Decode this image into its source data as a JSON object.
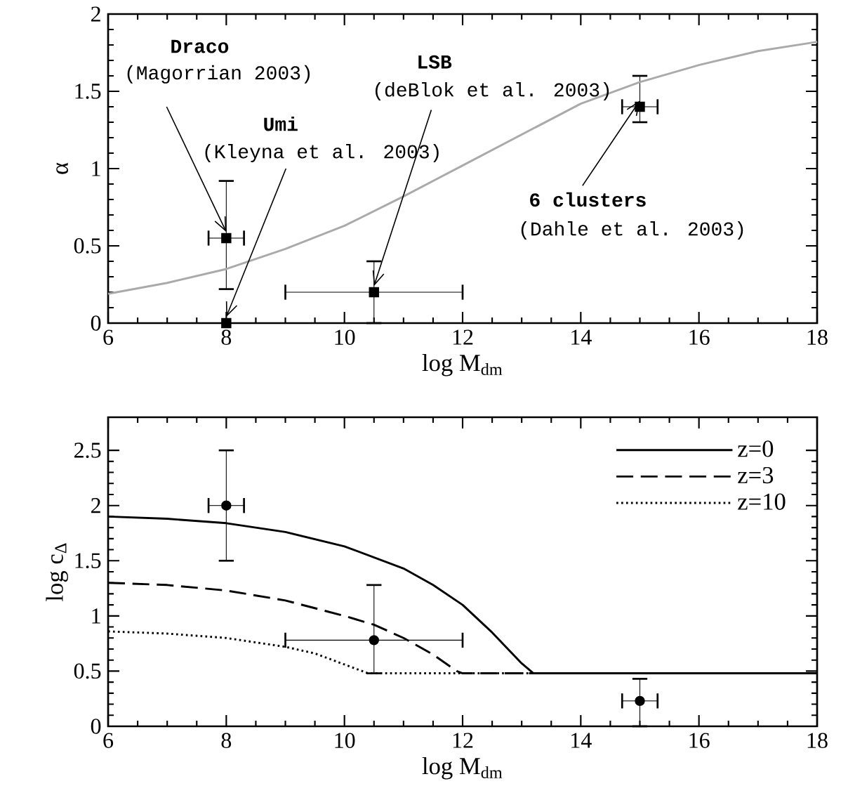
{
  "chart_data": [
    {
      "type": "scatter",
      "xlabel": "log M$_{dm}$",
      "ylabel": "α",
      "xlim": [
        6,
        18
      ],
      "ylim": [
        0,
        2
      ],
      "xticks": [
        6,
        8,
        10,
        12,
        14,
        16,
        18
      ],
      "yticks": [
        0,
        0.5,
        1,
        1.5,
        2
      ],
      "grid": false,
      "legend": false,
      "series": [
        {
          "color": "#000000",
          "marker": "square",
          "x": [
            8,
            8,
            10.5,
            15
          ],
          "values": [
            0.55,
            0,
            0.2,
            1.4
          ],
          "errors": [
            [
              0.22,
              0.92
            ],
            null,
            [
              0,
              0.4
            ],
            [
              1.3,
              1.6
            ]
          ],
          "xerrors": [
            0.3,
            null,
            1.5,
            0.3
          ]
        },
        {
          "type": "line",
          "color": "#aaaaaa",
          "marker": "none",
          "line_style": "solid",
          "x": [
            6,
            7,
            8,
            9,
            10,
            11,
            12,
            13,
            14,
            15,
            16,
            17,
            18
          ],
          "values": [
            0.19,
            0.26,
            0.35,
            0.48,
            0.63,
            0.82,
            1.02,
            1.22,
            1.42,
            1.56,
            1.67,
            1.76,
            1.82
          ]
        }
      ],
      "annotations": [
        "Draco",
        {
          "text": "(Magorrian 2003)",
          "x": 8,
          "y": 0.55
        },
        "Umi",
        {
          "text": "(Kleyna et al. 2003)",
          "x": 8,
          "y": 0
        },
        "LSB",
        {
          "text": "(deBlok et al. 2003)",
          "x": 10.5,
          "y": 0.2
        },
        {
          "text": "6 clusters",
          "x": 15,
          "y": 1.4
        },
        "(Dahle et al. 2003)"
      ]
    },
    {
      "type": "line",
      "xlabel": "log M$_{dm}$",
      "ylabel": "log c$_{Δ}$",
      "xlim": [
        6,
        18
      ],
      "ylim": [
        0,
        2.8
      ],
      "xticks": [
        6,
        8,
        10,
        12,
        14,
        16,
        18
      ],
      "yticks": [
        0,
        0.5,
        1,
        1.5,
        2,
        2.5
      ],
      "grid": false,
      "legend": "top right",
      "series": [
        {
          "type": "scatter",
          "color": "#000000",
          "marker": "circle",
          "x": [
            8,
            10.5,
            15
          ],
          "values": [
            2,
            0.78,
            0.23
          ],
          "errors": [
            [
              1.5,
              2.5
            ],
            [
              0.48,
              1.28
            ],
            [
              0,
              0.43
            ]
          ],
          "xerrors": [
            0.3,
            1.5,
            0.3
          ]
        },
        {
          "name": "z=0",
          "color": "#000000",
          "marker": "none",
          "line_style": "solid",
          "x": [
            6,
            7,
            8,
            9,
            10,
            10.5,
            11,
            11.5,
            12,
            12.5,
            13,
            13.2,
            18
          ],
          "values": [
            1.9,
            1.88,
            1.84,
            1.76,
            1.63,
            1.53,
            1.43,
            1.28,
            1.1,
            0.85,
            0.57,
            0.48,
            0.48
          ]
        },
        {
          "name": "z=3",
          "color": "#000000",
          "marker": "none",
          "line_style": "dashed",
          "x": [
            6,
            7,
            8,
            9,
            10,
            10.5,
            11,
            11.5,
            11.9,
            12,
            13.2
          ],
          "values": [
            1.3,
            1.28,
            1.23,
            1.14,
            1.0,
            0.92,
            0.8,
            0.65,
            0.5,
            0.48,
            0.48
          ]
        },
        {
          "name": "z=10",
          "color": "#000000",
          "marker": "none",
          "line_style": "dotted",
          "x": [
            6,
            7,
            8,
            9,
            9.5,
            10,
            10.4,
            13.2
          ],
          "values": [
            0.86,
            0.84,
            0.8,
            0.72,
            0.66,
            0.56,
            0.48,
            0.48
          ]
        }
      ]
    }
  ]
}
